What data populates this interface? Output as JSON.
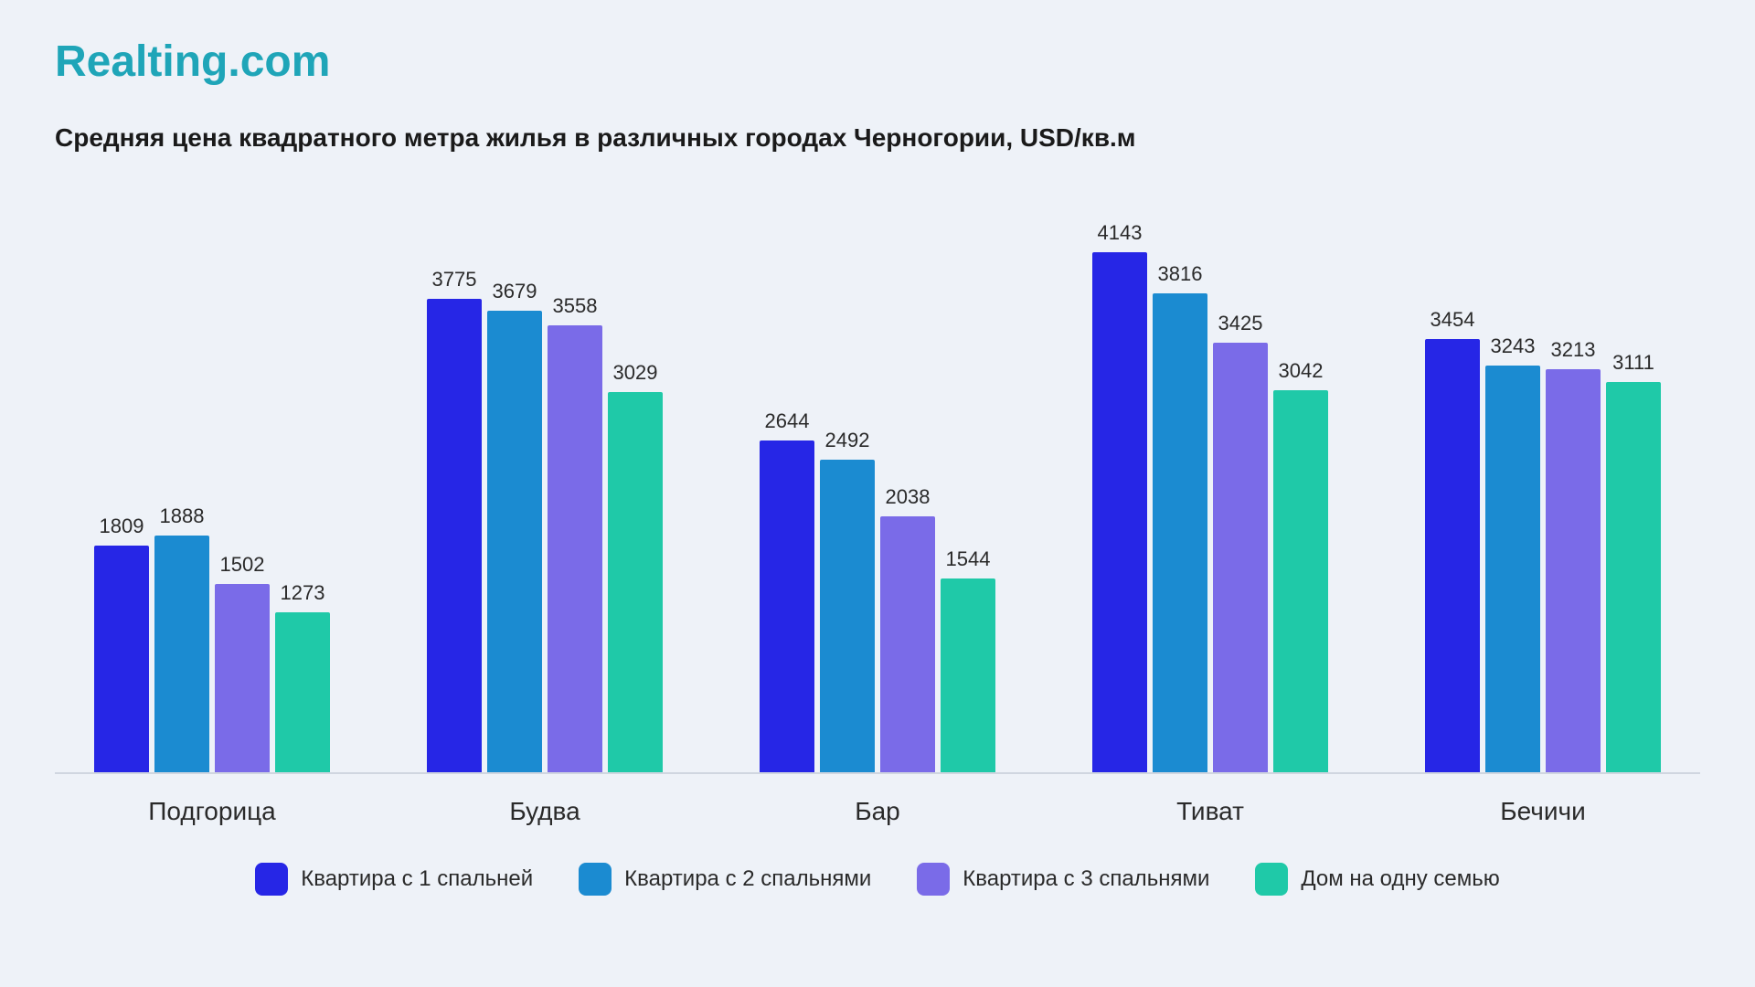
{
  "logo": "Realting.com",
  "title": "Средняя цена квадратного метра жилья в различных городах Черногории, USD/кв.м",
  "chart": {
    "type": "bar",
    "ylim_max": 4500,
    "background_color": "#eef2f8",
    "baseline_color": "#d0d6e0",
    "label_fontsize": 22,
    "x_label_fontsize": 28,
    "title_fontsize": 28,
    "logo_color": "#1fa5b8",
    "logo_fontsize": 48,
    "categories": [
      "Подгорица",
      "Будва",
      "Бар",
      "Тиват",
      "Бечичи"
    ],
    "series": [
      {
        "name": "Квартира с 1 спальней",
        "color": "#2626e6"
      },
      {
        "name": "Квартира с 2 спальнями",
        "color": "#1b8bd1"
      },
      {
        "name": "Квартира с 3 спальнями",
        "color": "#7a6be8"
      },
      {
        "name": "Дом на одну семью",
        "color": "#1fc9a8"
      }
    ],
    "data": [
      [
        1809,
        1888,
        1502,
        1273
      ],
      [
        3775,
        3679,
        3558,
        3029
      ],
      [
        2644,
        2492,
        2038,
        1544
      ],
      [
        4143,
        3816,
        3425,
        3042
      ],
      [
        3454,
        3243,
        3213,
        3111
      ]
    ]
  },
  "legend_fontsize": 24
}
